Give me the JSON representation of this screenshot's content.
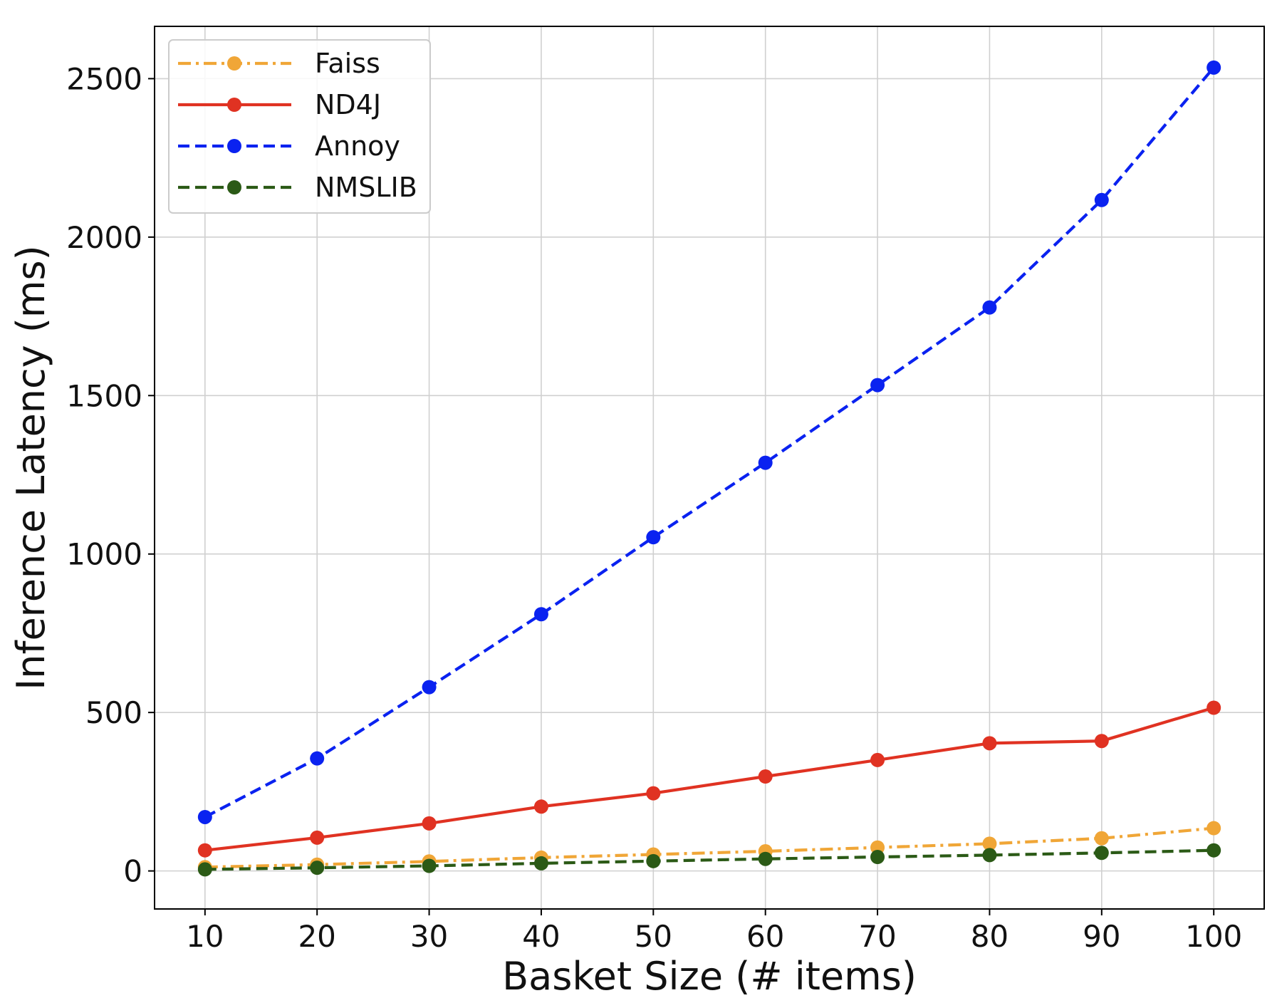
{
  "chart_data": {
    "type": "line",
    "title": "",
    "xlabel": "Basket Size (# items)",
    "ylabel": "Inference Latency (ms)",
    "x": [
      10,
      20,
      30,
      40,
      50,
      60,
      70,
      80,
      90,
      100
    ],
    "xticks": [
      10,
      20,
      30,
      40,
      50,
      60,
      70,
      80,
      90,
      100
    ],
    "yticks": [
      0,
      500,
      1000,
      1500,
      2000,
      2500
    ],
    "xlim": [
      5.5,
      104.5
    ],
    "ylim": [
      -120,
      2665
    ],
    "grid": true,
    "legend_position": "top-left",
    "series": [
      {
        "name": "Faiss",
        "color": "#F0A637",
        "line_style": "dashdot",
        "marker": "circle",
        "values": [
          12,
          20,
          30,
          42,
          52,
          62,
          74,
          86,
          103,
          135
        ]
      },
      {
        "name": "ND4J",
        "color": "#E03222",
        "line_style": "solid",
        "marker": "circle",
        "values": [
          65,
          105,
          150,
          203,
          245,
          298,
          350,
          403,
          410,
          515
        ]
      },
      {
        "name": "Annoy",
        "color": "#0A22F0",
        "line_style": "dashed",
        "marker": "circle",
        "values": [
          170,
          355,
          580,
          810,
          1053,
          1288,
          1533,
          1778,
          2117,
          2535
        ]
      },
      {
        "name": "NMSLIB",
        "color": "#2B5A16",
        "line_style": "dashed",
        "marker": "circle",
        "values": [
          5,
          10,
          16,
          24,
          31,
          38,
          44,
          50,
          57,
          65
        ]
      }
    ]
  }
}
